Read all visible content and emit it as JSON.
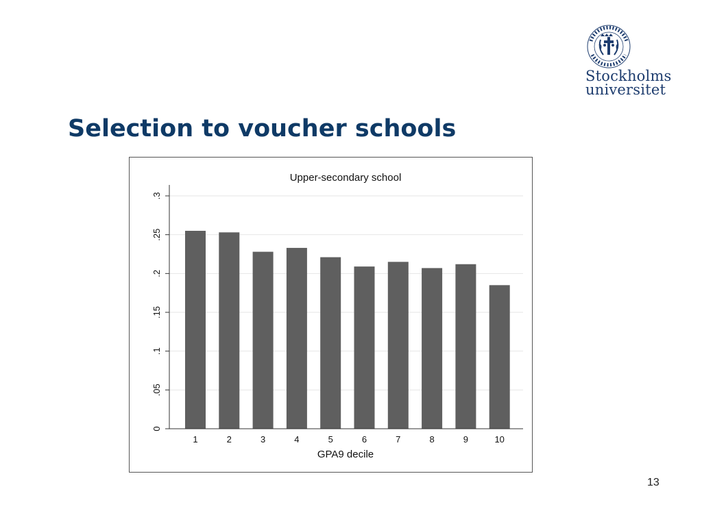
{
  "slide": {
    "title": "Selection to voucher schools",
    "page_number": "13"
  },
  "logo": {
    "line1": "Stockholms",
    "line2": "universitet",
    "seal_text": "UNIVERSITET · STOCKHOLMS",
    "color": "#1d3c6e"
  },
  "chart_data": {
    "type": "bar",
    "title": "Upper-secondary school",
    "xlabel": "GPA9 decile",
    "ylabel": "",
    "categories": [
      "1",
      "2",
      "3",
      "4",
      "5",
      "6",
      "7",
      "8",
      "9",
      "10"
    ],
    "values": [
      0.255,
      0.253,
      0.228,
      0.233,
      0.221,
      0.209,
      0.215,
      0.207,
      0.212,
      0.185
    ],
    "ylim": [
      0,
      0.3
    ],
    "yticks": [
      0,
      0.05,
      0.1,
      0.15,
      0.2,
      0.25,
      0.3
    ],
    "ytick_labels": [
      "0",
      ".05",
      ".1",
      ".15",
      ".2",
      ".25",
      ".3"
    ],
    "grid": true,
    "bar_color": "#5f5f5f",
    "grid_color": "#e6e6e6"
  }
}
